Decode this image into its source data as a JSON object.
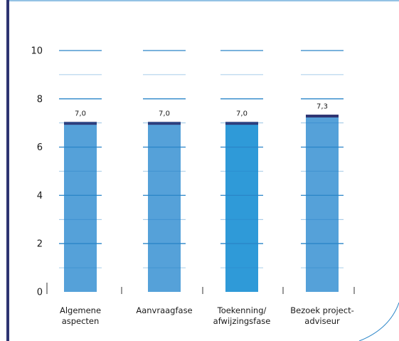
{
  "chart_data": {
    "type": "bar",
    "categories": [
      [
        "Algemene",
        "aspecten"
      ],
      [
        "Aanvraagfase"
      ],
      [
        "Toekenning/",
        "afwijzingsfase"
      ],
      [
        "Bezoek project-",
        "adviseur"
      ]
    ],
    "values": [
      7.0,
      7.0,
      7.0,
      7.3
    ],
    "data_labels": [
      "7,0",
      "7,0",
      "7,0",
      "7,3"
    ],
    "ylim": [
      0,
      10
    ],
    "yticks": [
      0,
      2,
      4,
      6,
      8,
      10
    ],
    "ytick_labels": [
      "0",
      "2",
      "4",
      "6",
      "8",
      "10"
    ],
    "gridlines_every": 1,
    "title": "",
    "xlabel": "",
    "ylabel": "",
    "legend": "none",
    "colors": {
      "bar": "#55a1d9",
      "bar_highlight": "#2f9ad8",
      "bar_cap": "#2e3472",
      "grid": "#2a85c8",
      "left_rule": "#2e3472",
      "frame_line": "#2a85c8"
    },
    "highlighted_index": 2
  }
}
